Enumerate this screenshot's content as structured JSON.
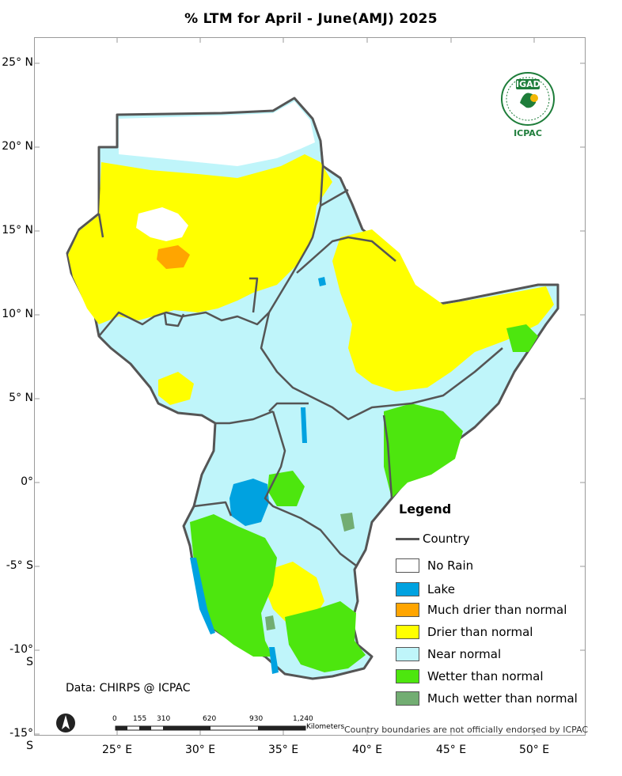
{
  "title": "% LTM  for April - June(AMJ) 2025",
  "y_axis_labels": [
    "25° N",
    "20° N",
    "15° N",
    "10° N",
    "5° N",
    "0°",
    "-5° S",
    "-10° S",
    "-15° S"
  ],
  "x_axis_labels": [
    "25° E",
    "30° E",
    "35° E",
    "40° E",
    "45° E",
    "50° E"
  ],
  "legend": {
    "title": "Legend",
    "country_label": "Country",
    "country_color": "#555555",
    "items": [
      {
        "label": "No Rain",
        "color": "#ffffff"
      },
      {
        "label": "Lake",
        "color": "#00a2e0"
      },
      {
        "label": "Much drier than normal",
        "color": "#ffa500"
      },
      {
        "label": "Drier than normal",
        "color": "#ffff00"
      },
      {
        "label": "Near normal",
        "color": "#bff5fa"
      },
      {
        "label": "Wetter than normal",
        "color": "#4de60e"
      },
      {
        "label": "Much wetter than normal",
        "color": "#72ad72"
      }
    ]
  },
  "source": "Data: CHIRPS @ ICPAC",
  "scale_bar": {
    "ticks": [
      "0",
      "155",
      "310",
      "620",
      "930",
      "1,240"
    ],
    "unit": "Kilometers"
  },
  "disclaimer": "Country boundaries are not officially endorsed by ICPAC",
  "logo": {
    "top_text": "IGAD",
    "bottom_text": "ICPAC"
  },
  "north_arrow_icon": "north-arrow-icon"
}
